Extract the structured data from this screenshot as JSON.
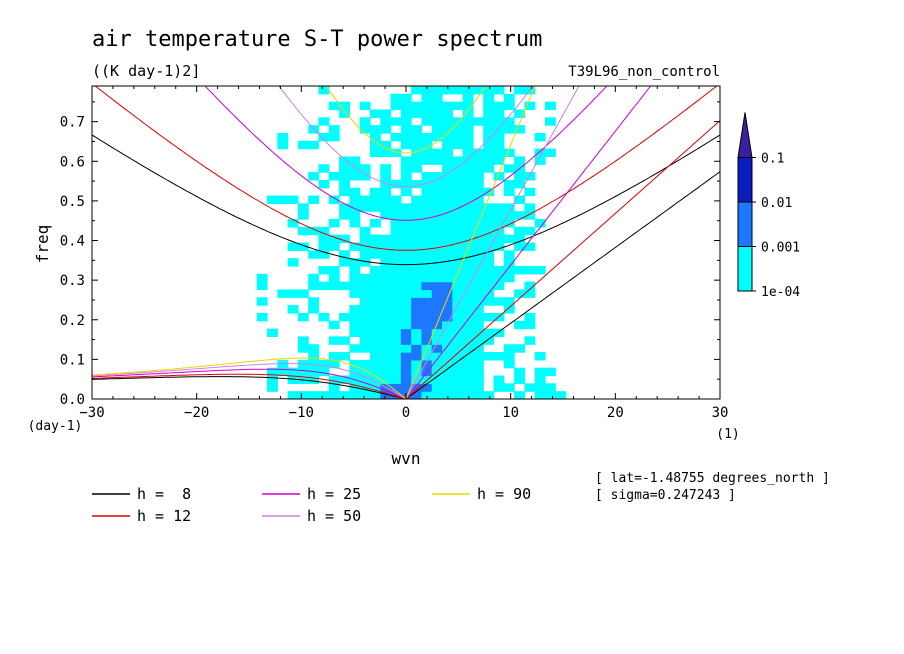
{
  "title": "air temperature S-T power spectrum",
  "units": "((K day-1)2]",
  "experiment": "T39L96_non_control",
  "info": [
    "[ lat=-1.48755 degrees_north ]",
    "[ sigma=0.247243 ]"
  ],
  "chart_data": {
    "type": "heatmap",
    "xlabel": "wvn",
    "ylabel": "freq",
    "x_unit": "(1)",
    "y_unit": "(day-1)",
    "xlim": [
      -30,
      30
    ],
    "ylim": [
      0,
      0.79
    ],
    "x_ticks": [
      "-30",
      "-20",
      "-10",
      "0",
      "10",
      "20",
      "30"
    ],
    "y_ticks": [
      "0.0",
      "0.1",
      "0.2",
      "0.3",
      "0.4",
      "0.5",
      "0.6",
      "0.7"
    ],
    "colorbar": {
      "levels": [
        "1e-04",
        "0.001",
        "0.01",
        "0.1"
      ],
      "colors": [
        "#00ffff",
        "#1e78ff",
        "#0a1ebe",
        "#3c1ea0"
      ]
    },
    "dispersion_curves": [
      {
        "name": "h =  8",
        "h": 8,
        "color": "#000000"
      },
      {
        "name": "h = 12",
        "h": 12,
        "color": "#e00000"
      },
      {
        "name": "h = 25",
        "h": 25,
        "color": "#d000d0"
      },
      {
        "name": "h = 50",
        "h": 50,
        "color": "#d080e0"
      },
      {
        "name": "h = 90",
        "h": 90,
        "color": "#e8d800"
      }
    ]
  }
}
